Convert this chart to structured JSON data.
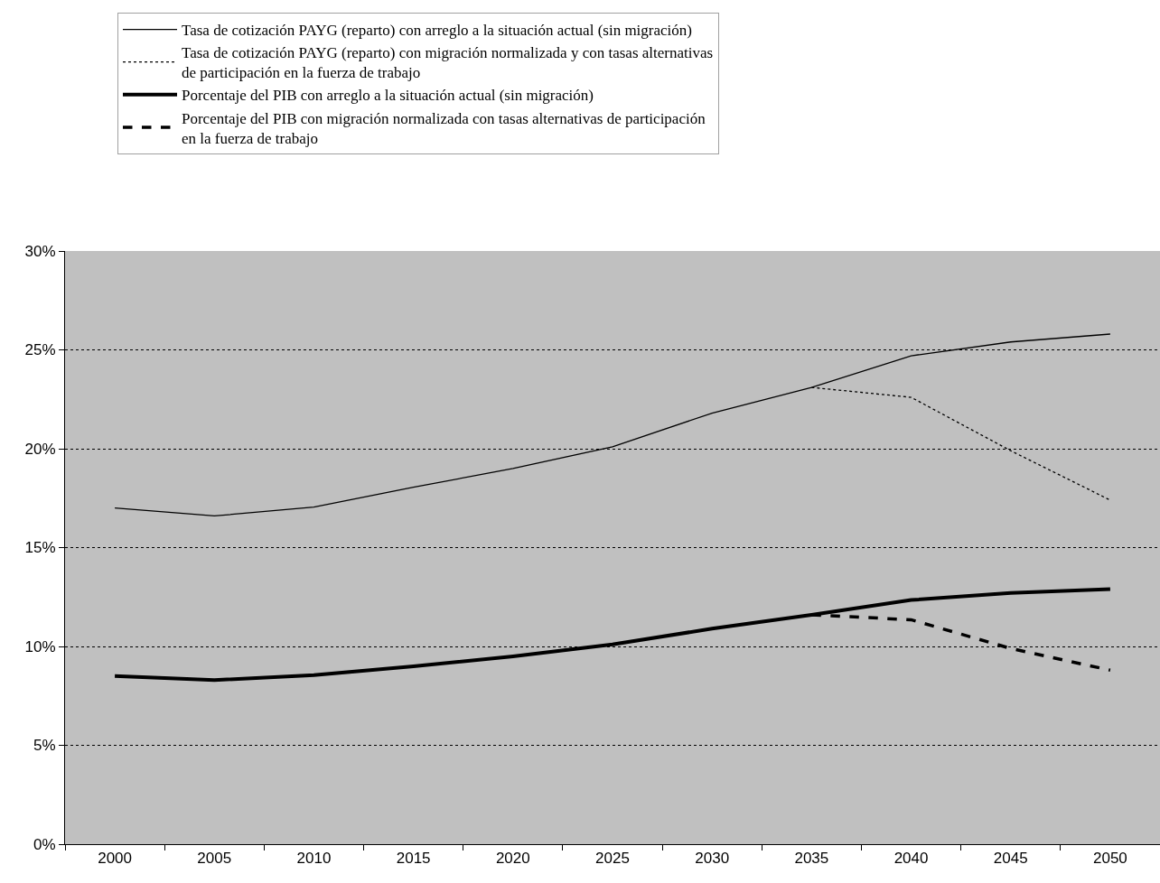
{
  "chart_data": {
    "type": "line",
    "categories": [
      "2000",
      "2005",
      "2010",
      "2015",
      "2020",
      "2025",
      "2030",
      "2035",
      "2040",
      "2045",
      "2050"
    ],
    "series": [
      {
        "name": "Tasa de cotización PAYG (reparto) con arreglo a la situación actual (sin migración)",
        "color": "#000000",
        "line_style": "solid",
        "values": [
          17.0,
          16.6,
          17.05,
          18.05,
          19.0,
          20.1,
          21.8,
          23.1,
          24.7,
          25.4,
          25.8
        ]
      },
      {
        "name": "Tasa de cotización PAYG (reparto) con migración normalizada y con tasas alternativas\nde participación en la fuerza de trabajo",
        "color": "#000000",
        "line_style": "dotted",
        "values": [
          null,
          null,
          null,
          null,
          null,
          null,
          null,
          23.1,
          22.6,
          19.9,
          17.4
        ]
      },
      {
        "name": "Porcentaje del PIB con arreglo a la situación actual (sin migración)",
        "color": "#000000",
        "line_style": "solid",
        "values": [
          8.5,
          8.3,
          8.55,
          9.0,
          9.5,
          10.1,
          10.9,
          11.6,
          12.35,
          12.7,
          12.9
        ]
      },
      {
        "name": "Porcentaje del PIB con migración normalizada con tasas alternativas de participación\nen la fuerza de trabajo",
        "color": "#000000",
        "line_style": "dashed",
        "values": [
          null,
          null,
          null,
          null,
          null,
          null,
          null,
          11.6,
          11.35,
          9.9,
          8.8
        ]
      }
    ],
    "ylim": [
      0,
      30
    ],
    "yticks": [
      {
        "value": 0,
        "label": "0%"
      },
      {
        "value": 5,
        "label": "5%"
      },
      {
        "value": 10,
        "label": "10%"
      },
      {
        "value": 15,
        "label": "15%"
      },
      {
        "value": 20,
        "label": "20%"
      },
      {
        "value": 25,
        "label": "25%"
      },
      {
        "value": 30,
        "label": "30%"
      }
    ],
    "grid": "y",
    "legend": "top",
    "marker": "none"
  }
}
